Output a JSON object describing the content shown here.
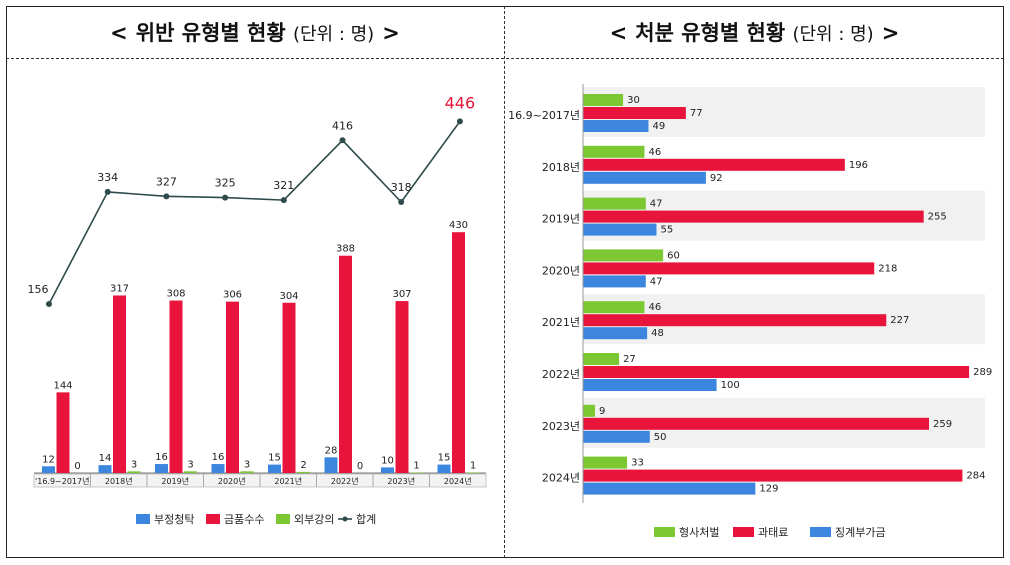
{
  "left_header": {
    "open": "<",
    "title": "위반 유형별 현황",
    "unit": "(단위 : 명)",
    "close": ">"
  },
  "right_header": {
    "open": "<",
    "title": "처분 유형별 현황",
    "unit": "(단위 : 명)",
    "close": ">"
  },
  "chart_data": [
    {
      "type": "bar",
      "title": "위반 유형별 현황 (단위 : 명)",
      "categories": [
        "'16.9~2017년",
        "2018년",
        "2019년",
        "2020년",
        "2021년",
        "2022년",
        "2023년",
        "2024년"
      ],
      "series": [
        {
          "name": "부정청탁",
          "color": "#3d86e0",
          "values": [
            12,
            14,
            16,
            16,
            15,
            28,
            10,
            15
          ]
        },
        {
          "name": "금품수수",
          "color": "#e8143c",
          "values": [
            144,
            317,
            308,
            306,
            304,
            388,
            307,
            430
          ]
        },
        {
          "name": "외부강의",
          "color": "#7cc832",
          "values": [
            0,
            3,
            3,
            3,
            2,
            0,
            1,
            1
          ]
        }
      ],
      "line_series": {
        "name": "합계",
        "color": "#2e4a4a",
        "values": [
          156,
          334,
          327,
          325,
          321,
          416,
          318,
          446
        ],
        "highlight_color": "#e8143c"
      },
      "legend_position": "bottom"
    },
    {
      "type": "bar",
      "orientation": "horizontal",
      "title": "처분 유형별 현황 (단위 : 명)",
      "categories": [
        "16.9~2017년",
        "2018년",
        "2019년",
        "2020년",
        "2021년",
        "2022년",
        "2023년",
        "2024년"
      ],
      "series": [
        {
          "name": "형사처벌",
          "color": "#7cc832",
          "values": [
            30,
            46,
            47,
            60,
            46,
            27,
            9,
            33
          ]
        },
        {
          "name": "과태료",
          "color": "#e8143c",
          "values": [
            77,
            196,
            255,
            218,
            227,
            289,
            259,
            284
          ]
        },
        {
          "name": "징계부가금",
          "color": "#3d86e0",
          "values": [
            49,
            92,
            55,
            47,
            48,
            100,
            50,
            129
          ]
        }
      ],
      "xlim": [
        0,
        290
      ],
      "legend_position": "bottom"
    }
  ]
}
